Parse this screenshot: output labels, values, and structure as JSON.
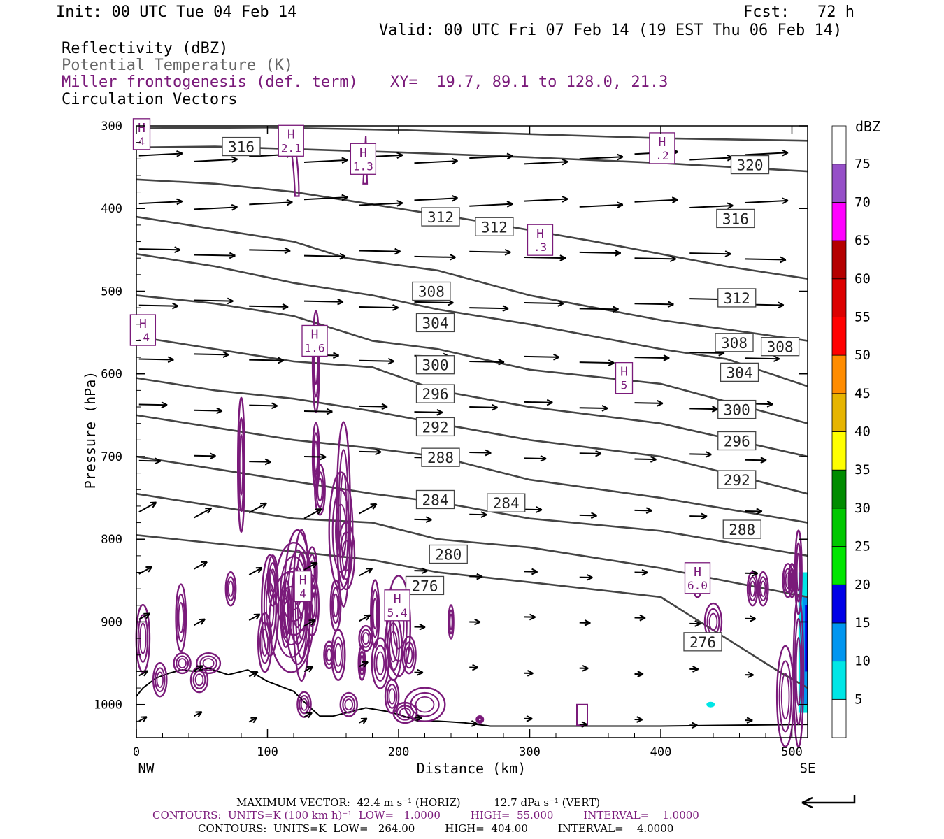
{
  "header": {
    "init": "Init: 00 UTC Tue 04 Feb 14",
    "fcst": "Fcst:   72 h",
    "valid": "Valid: 00 UTC Fri 07 Feb 14 (19 EST Thu 06 Feb 14)",
    "field1": "Reflectivity (dBZ)",
    "field2": "Potential Temperature (K)",
    "field3": "Miller frontogenesis (def. term)",
    "xy": "XY=  19.7, 89.1 to 128.0, 21.3",
    "field4": "Circulation Vectors"
  },
  "footer": {
    "maxvec": "MAXIMUM VECTOR:  42.4 m s⁻¹ (HORIZ)          12.7 dPa s⁻¹ (VERT)",
    "contours1": "CONTOURS:  UNITS=K (100 km h)⁻¹  LOW=   1.0000         HIGH=  55.000         INTERVAL=    1.0000",
    "contours2": "CONTOURS:  UNITS=K  LOW=   264.00         HIGH=  404.00         INTERVAL=    4.0000"
  },
  "chart_data": {
    "type": "cross-section",
    "xlabel": "Distance (km)",
    "ylabel": "Pressure (hPa)",
    "xlim": [
      0,
      512
    ],
    "ylim": [
      1040,
      300
    ],
    "x_ticks": [
      0,
      100,
      200,
      300,
      400,
      500
    ],
    "y_ticks": [
      300,
      400,
      500,
      600,
      700,
      800,
      900,
      1000
    ],
    "x_end_labels": [
      "NW",
      "SE"
    ],
    "colorbar": {
      "title": "dBZ",
      "labels": [
        "5",
        "10",
        "15",
        "20",
        "25",
        "30",
        "35",
        "40",
        "45",
        "50",
        "55",
        "60",
        "65",
        "70",
        "75"
      ],
      "colors": [
        "#ffffff",
        "#00e6e6",
        "#0096f0",
        "#0000e6",
        "#00e600",
        "#00c800",
        "#008c00",
        "#ffff00",
        "#e6b400",
        "#ff8c00",
        "#ff0000",
        "#dc0000",
        "#b40000",
        "#ff00ff",
        "#9650c8",
        "#ffffff"
      ]
    },
    "theta_contours": [
      {
        "label": "316",
        "points": [
          [
            0,
            326
          ],
          [
            60,
            325
          ],
          [
            120,
            328
          ],
          [
            200,
            332
          ],
          [
            300,
            338
          ],
          [
            400,
            345
          ],
          [
            512,
            355
          ]
        ]
      },
      {
        "label": "320",
        "points": [
          [
            0,
            303
          ],
          [
            100,
            302
          ],
          [
            200,
            305
          ],
          [
            300,
            310
          ],
          [
            400,
            315
          ],
          [
            512,
            318
          ]
        ]
      },
      {
        "label": "312",
        "points": [
          [
            0,
            365
          ],
          [
            60,
            370
          ],
          [
            120,
            380
          ],
          [
            200,
            400
          ],
          [
            260,
            415
          ],
          [
            350,
            440
          ],
          [
            450,
            470
          ],
          [
            512,
            485
          ]
        ]
      },
      {
        "label": "308",
        "points": [
          [
            0,
            410
          ],
          [
            60,
            425
          ],
          [
            120,
            440
          ],
          [
            160,
            460
          ],
          [
            230,
            475
          ],
          [
            300,
            505
          ],
          [
            400,
            535
          ],
          [
            512,
            560
          ]
        ]
      },
      {
        "label": "304",
        "points": [
          [
            0,
            455
          ],
          [
            60,
            470
          ],
          [
            120,
            490
          ],
          [
            180,
            505
          ],
          [
            230,
            522
          ],
          [
            300,
            540
          ],
          [
            400,
            570
          ],
          [
            450,
            582
          ],
          [
            512,
            615
          ]
        ]
      },
      {
        "label": "300",
        "points": [
          [
            0,
            505
          ],
          [
            60,
            515
          ],
          [
            120,
            530
          ],
          [
            180,
            560
          ],
          [
            230,
            570
          ],
          [
            300,
            595
          ],
          [
            400,
            612
          ],
          [
            512,
            660
          ]
        ]
      },
      {
        "label": "296",
        "points": [
          [
            0,
            555
          ],
          [
            60,
            570
          ],
          [
            120,
            585
          ],
          [
            180,
            592
          ],
          [
            230,
            620
          ],
          [
            300,
            640
          ],
          [
            400,
            660
          ],
          [
            512,
            700
          ]
        ]
      },
      {
        "label": "292",
        "points": [
          [
            0,
            605
          ],
          [
            60,
            620
          ],
          [
            120,
            630
          ],
          [
            180,
            645
          ],
          [
            230,
            660
          ],
          [
            300,
            680
          ],
          [
            400,
            700
          ],
          [
            512,
            745
          ]
        ]
      },
      {
        "label": "288",
        "points": [
          [
            0,
            650
          ],
          [
            60,
            665
          ],
          [
            120,
            680
          ],
          [
            180,
            690
          ],
          [
            230,
            700
          ],
          [
            300,
            728
          ],
          [
            400,
            750
          ],
          [
            512,
            780
          ]
        ]
      },
      {
        "label": "284",
        "points": [
          [
            0,
            700
          ],
          [
            60,
            715
          ],
          [
            120,
            730
          ],
          [
            180,
            745
          ],
          [
            230,
            755
          ],
          [
            300,
            775
          ],
          [
            400,
            790
          ],
          [
            512,
            820
          ]
        ]
      },
      {
        "label": "280",
        "points": [
          [
            0,
            745
          ],
          [
            60,
            760
          ],
          [
            120,
            775
          ],
          [
            180,
            780
          ],
          [
            230,
            800
          ],
          [
            300,
            810
          ],
          [
            400,
            835
          ],
          [
            512,
            870
          ]
        ]
      },
      {
        "label": "276",
        "points": [
          [
            0,
            795
          ],
          [
            60,
            805
          ],
          [
            120,
            815
          ],
          [
            180,
            825
          ],
          [
            230,
            840
          ],
          [
            300,
            852
          ],
          [
            400,
            870
          ],
          [
            430,
            900
          ],
          [
            460,
            930
          ],
          [
            490,
            960
          ],
          [
            512,
            980
          ]
        ]
      }
    ],
    "h_markers": [
      "4",
      "2.1",
      "1.3",
      ".2",
      ".3",
      ".4",
      "1.6",
      "5",
      "4",
      "5.4",
      "6.0"
    ],
    "terrain_note": "lowest-level potential temperature follows surface"
  }
}
